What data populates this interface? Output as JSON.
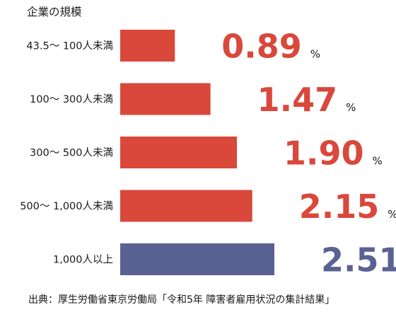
{
  "chart_data": {
    "type": "bar",
    "orientation": "horizontal",
    "ylabel": "企業の規模",
    "categories": [
      "43.5〜 100人未満",
      "100〜 300人未満",
      "300〜 500人未満",
      "500〜 1,000人未満",
      "1,000人以上"
    ],
    "values": [
      0.89,
      1.47,
      1.9,
      2.15,
      2.51
    ],
    "value_labels": [
      "0.89",
      "1.47",
      "1.90",
      "2.15",
      "2.51"
    ],
    "unit": "%",
    "colors": [
      "#d9483b",
      "#d9483b",
      "#d9483b",
      "#d9483b",
      "#5a6193"
    ],
    "xlim": [
      0,
      2.51
    ],
    "grid": false,
    "legend": "none",
    "source": "出典：厚生労働省東京労働局「令和5年 障害者雇用状況の集計結果」"
  }
}
